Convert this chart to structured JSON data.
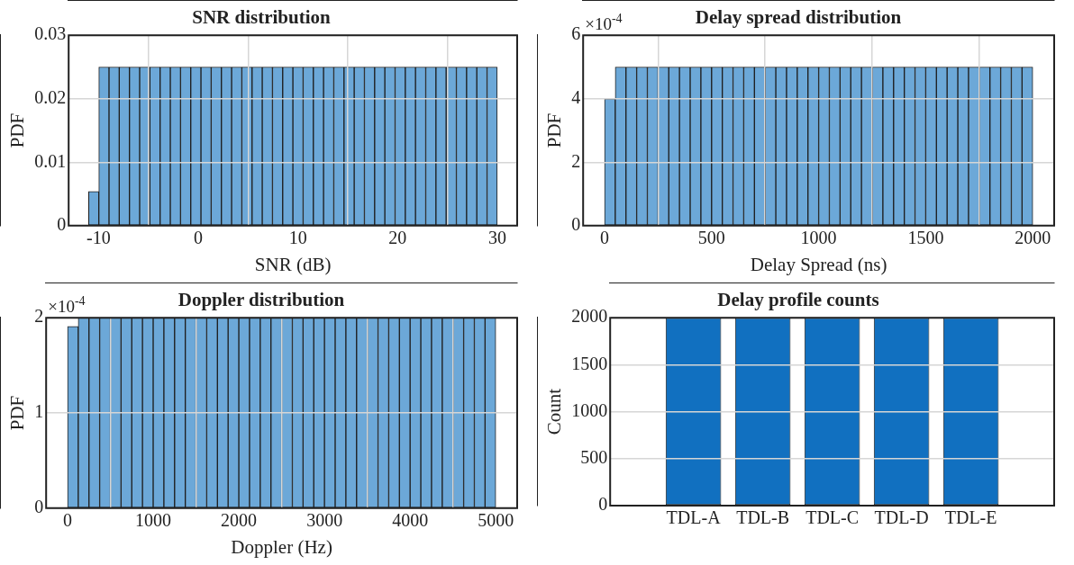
{
  "chart_data": [
    {
      "type": "histogram",
      "title": "SNR distribution",
      "xlabel": "SNR (dB)",
      "ylabel": "PDF",
      "color": "#6ca8d8",
      "grid": true,
      "bins": [
        -11,
        -9.975,
        -8.95,
        -7.925,
        -6.9,
        -5.875,
        -4.85,
        -3.825,
        -2.8,
        -1.775,
        -0.75,
        0.275,
        1.3,
        2.325,
        3.35,
        4.375,
        5.4,
        6.425,
        7.45,
        8.475,
        9.5,
        10.525,
        11.55,
        12.575,
        13.6,
        14.625,
        15.65,
        16.675,
        17.7,
        18.725,
        19.75,
        20.775,
        21.8,
        22.825,
        23.85,
        24.875,
        25.9,
        26.925,
        27.95,
        28.975,
        30
      ],
      "values": [
        0.0054,
        0.025,
        0.025,
        0.025,
        0.025,
        0.025,
        0.025,
        0.025,
        0.025,
        0.025,
        0.025,
        0.025,
        0.025,
        0.025,
        0.025,
        0.025,
        0.025,
        0.025,
        0.025,
        0.025,
        0.025,
        0.025,
        0.025,
        0.025,
        0.025,
        0.025,
        0.025,
        0.025,
        0.025,
        0.025,
        0.025,
        0.025,
        0.025,
        0.025,
        0.025,
        0.025,
        0.025,
        0.025,
        0.025,
        0.025
      ],
      "xlim": [
        -13,
        32
      ],
      "xticks": [
        -10,
        0,
        10,
        20,
        30
      ],
      "ylim": [
        0,
        0.03
      ],
      "yticks": [
        0,
        0.01,
        0.02,
        0.03
      ]
    },
    {
      "type": "histogram",
      "title": "Delay spread distribution",
      "xlabel": "Delay Spread (ns)",
      "ylabel": "PDF",
      "color": "#6ca8d8",
      "grid": true,
      "bins": [
        0,
        50,
        100,
        150,
        200,
        250,
        300,
        350,
        400,
        450,
        500,
        550,
        600,
        650,
        700,
        750,
        800,
        850,
        900,
        950,
        1000,
        1050,
        1100,
        1150,
        1200,
        1250,
        1300,
        1350,
        1400,
        1450,
        1500,
        1550,
        1600,
        1650,
        1700,
        1750,
        1800,
        1850,
        1900,
        1950,
        2000
      ],
      "values": [
        4.0,
        5.0,
        5.0,
        5.0,
        5.0,
        5.0,
        5.0,
        5.0,
        5.0,
        5.0,
        5.0,
        5.0,
        5.0,
        5.0,
        5.0,
        5.0,
        5.0,
        5.0,
        5.0,
        5.0,
        5.0,
        5.0,
        5.0,
        5.0,
        5.0,
        5.0,
        5.0,
        5.0,
        5.0,
        5.0,
        5.0,
        5.0,
        5.0,
        5.0,
        5.0,
        5.0,
        5.0,
        5.0,
        5.0,
        5.0
      ],
      "xlim": [
        -100,
        2100
      ],
      "xticks": [
        0,
        500,
        1000,
        1500,
        2000
      ],
      "ylim": [
        0,
        6
      ],
      "yticks": [
        0,
        2,
        4,
        6
      ],
      "annotations": [
        "×10$^{-4}$"
      ]
    },
    {
      "type": "histogram",
      "title": "Doppler distribution",
      "xlabel": "Doppler (Hz)",
      "ylabel": "PDF",
      "color": "#6ca8d8",
      "grid": true,
      "bins": [
        0,
        125,
        250,
        375,
        500,
        625,
        750,
        875,
        1000,
        1125,
        1250,
        1375,
        1500,
        1625,
        1750,
        1875,
        2000,
        2125,
        2250,
        2375,
        2500,
        2625,
        2750,
        2875,
        3000,
        3125,
        3250,
        3375,
        3500,
        3625,
        3750,
        3875,
        4000,
        4125,
        4250,
        4375,
        4500,
        4625,
        4750,
        4875,
        5000
      ],
      "values": [
        1.91,
        2.0,
        2.0,
        2.0,
        2.0,
        2.0,
        2.0,
        2.0,
        2.0,
        2.0,
        2.0,
        2.0,
        2.0,
        2.0,
        2.0,
        2.0,
        2.0,
        2.0,
        2.0,
        2.0,
        2.0,
        2.0,
        2.0,
        2.0,
        2.0,
        2.0,
        2.0,
        2.0,
        2.0,
        2.0,
        2.0,
        2.0,
        2.0,
        2.0,
        2.0,
        2.0,
        2.0,
        2.0,
        2.0,
        2.0
      ],
      "xlim": [
        -250,
        5250
      ],
      "xticks": [
        0,
        1000,
        2000,
        3000,
        4000,
        5000
      ],
      "ylim": [
        0,
        2
      ],
      "yticks": [
        0,
        1,
        2
      ],
      "annotations": [
        "×10$^{-4}$"
      ]
    },
    {
      "type": "bar",
      "title": "Delay profile counts",
      "ylabel": "Count",
      "color": "#1170c0",
      "grid": "y",
      "categories": [
        "TDL-A",
        "TDL-B",
        "TDL-C",
        "TDL-D",
        "TDL-E"
      ],
      "values": [
        2000,
        2000,
        2000,
        2000,
        2000
      ],
      "ylim": [
        0,
        2000
      ],
      "yticks": [
        0,
        500,
        1000,
        1500,
        2000
      ]
    }
  ]
}
